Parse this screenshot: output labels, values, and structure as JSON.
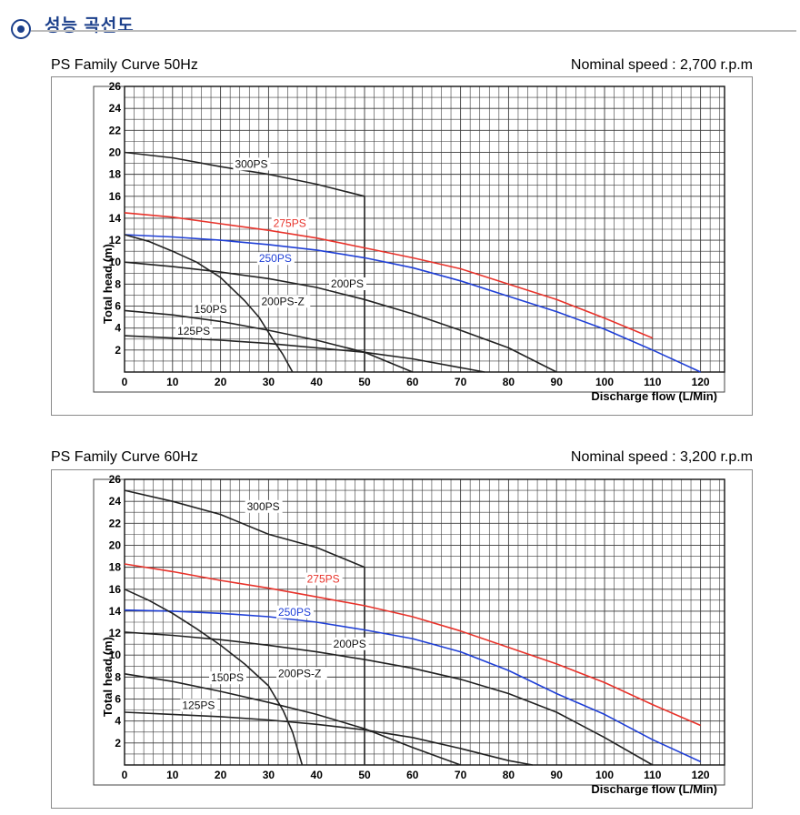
{
  "header": {
    "title": "성능 곡선도",
    "icon": "bullet-circle-icon",
    "accent": "#1b3f8b"
  },
  "colors": {
    "black": "#222222",
    "red": "#e8332b",
    "blue": "#1f3fd6"
  },
  "chart_data": [
    {
      "type": "line",
      "title": "PS Family Curve 50Hz",
      "subtitle": "Nominal speed : 2,700 r.p.m",
      "xlabel": "Discharge flow (L/Min)",
      "ylabel": "Total head (m)",
      "xlim": [
        0,
        125
      ],
      "ylim": [
        0,
        26
      ],
      "xticks": [
        0,
        10,
        20,
        30,
        40,
        50,
        60,
        70,
        80,
        90,
        100,
        110,
        120
      ],
      "yticks": [
        2,
        4,
        6,
        8,
        10,
        12,
        14,
        16,
        18,
        20,
        22,
        24,
        26
      ],
      "grid": true,
      "series": [
        {
          "name": "300PS",
          "color": "black",
          "points": [
            [
              0,
              20
            ],
            [
              10,
              19.5
            ],
            [
              20,
              18.7
            ],
            [
              30,
              18.0
            ],
            [
              40,
              17.1
            ],
            [
              50,
              16.0
            ],
            [
              50,
              0
            ]
          ],
          "label_at": [
            23,
            18.6
          ]
        },
        {
          "name": "275PS",
          "color": "red",
          "points": [
            [
              0,
              14.5
            ],
            [
              10,
              14.1
            ],
            [
              20,
              13.5
            ],
            [
              30,
              12.9
            ],
            [
              40,
              12.2
            ],
            [
              50,
              11.3
            ],
            [
              60,
              10.4
            ],
            [
              70,
              9.4
            ],
            [
              80,
              8.0
            ],
            [
              90,
              6.6
            ],
            [
              100,
              4.9
            ],
            [
              110,
              3.1
            ]
          ],
          "label_at": [
            31,
            13.2
          ]
        },
        {
          "name": "250PS",
          "color": "blue",
          "points": [
            [
              0,
              12.5
            ],
            [
              10,
              12.3
            ],
            [
              20,
              12.0
            ],
            [
              30,
              11.6
            ],
            [
              40,
              11.1
            ],
            [
              50,
              10.4
            ],
            [
              60,
              9.5
            ],
            [
              70,
              8.3
            ],
            [
              80,
              6.9
            ],
            [
              90,
              5.5
            ],
            [
              100,
              3.9
            ],
            [
              110,
              2.0
            ],
            [
              120,
              0
            ]
          ],
          "label_at": [
            28,
            10.0
          ]
        },
        {
          "name": "200PS",
          "color": "black",
          "points": [
            [
              0,
              10.0
            ],
            [
              10,
              9.6
            ],
            [
              20,
              9.1
            ],
            [
              30,
              8.5
            ],
            [
              40,
              7.7
            ],
            [
              50,
              6.6
            ],
            [
              60,
              5.3
            ],
            [
              70,
              3.8
            ],
            [
              80,
              2.2
            ],
            [
              90,
              0
            ]
          ],
          "label_at": [
            43,
            7.7
          ]
        },
        {
          "name": "200PS-Z",
          "color": "black",
          "points": [
            [
              0,
              12.5
            ],
            [
              5,
              11.9
            ],
            [
              10,
              11.0
            ],
            [
              15,
              10.0
            ],
            [
              20,
              8.6
            ],
            [
              25,
              6.5
            ],
            [
              28,
              5.0
            ],
            [
              31,
              2.9
            ],
            [
              33,
              1.6
            ],
            [
              35,
              0
            ]
          ],
          "label_at": [
            28.5,
            6.1
          ]
        },
        {
          "name": "150PS",
          "color": "black",
          "points": [
            [
              0,
              5.6
            ],
            [
              10,
              5.2
            ],
            [
              20,
              4.6
            ],
            [
              30,
              3.8
            ],
            [
              40,
              2.9
            ],
            [
              50,
              1.8
            ],
            [
              60,
              0
            ]
          ],
          "label_at": [
            14.5,
            5.4
          ]
        },
        {
          "name": "125PS",
          "color": "black",
          "points": [
            [
              0,
              3.3
            ],
            [
              10,
              3.1
            ],
            [
              20,
              2.9
            ],
            [
              30,
              2.6
            ],
            [
              40,
              2.2
            ],
            [
              50,
              1.8
            ],
            [
              60,
              1.2
            ],
            [
              70,
              0.4
            ],
            [
              75,
              0
            ]
          ],
          "label_at": [
            11,
            3.4
          ]
        }
      ]
    },
    {
      "type": "line",
      "title": "PS Family Curve 60Hz",
      "subtitle": "Nominal speed : 3,200 r.p.m",
      "xlabel": "Discharge flow (L/Min)",
      "ylabel": "Total head (m)",
      "xlim": [
        0,
        125
      ],
      "ylim": [
        0,
        26
      ],
      "xticks": [
        0,
        10,
        20,
        30,
        40,
        50,
        60,
        70,
        80,
        90,
        100,
        110,
        120
      ],
      "yticks": [
        2,
        4,
        6,
        8,
        10,
        12,
        14,
        16,
        18,
        20,
        22,
        24,
        26
      ],
      "grid": true,
      "series": [
        {
          "name": "300PS",
          "color": "black",
          "points": [
            [
              0,
              25.0
            ],
            [
              10,
              24.0
            ],
            [
              20,
              22.8
            ],
            [
              30,
              21.0
            ],
            [
              40,
              19.8
            ],
            [
              50,
              18.0
            ],
            [
              50,
              0
            ]
          ],
          "label_at": [
            25.5,
            23.2
          ]
        },
        {
          "name": "275PS",
          "color": "red",
          "points": [
            [
              0,
              18.3
            ],
            [
              10,
              17.6
            ],
            [
              20,
              16.8
            ],
            [
              30,
              16.1
            ],
            [
              40,
              15.3
            ],
            [
              50,
              14.5
            ],
            [
              60,
              13.5
            ],
            [
              70,
              12.2
            ],
            [
              80,
              10.7
            ],
            [
              90,
              9.2
            ],
            [
              100,
              7.5
            ],
            [
              110,
              5.5
            ],
            [
              120,
              3.6
            ]
          ],
          "label_at": [
            38,
            16.6
          ]
        },
        {
          "name": "250PS",
          "color": "blue",
          "points": [
            [
              0,
              14.1
            ],
            [
              10,
              14.0
            ],
            [
              20,
              13.8
            ],
            [
              30,
              13.5
            ],
            [
              40,
              13.0
            ],
            [
              50,
              12.3
            ],
            [
              60,
              11.5
            ],
            [
              70,
              10.3
            ],
            [
              80,
              8.6
            ],
            [
              90,
              6.5
            ],
            [
              100,
              4.6
            ],
            [
              110,
              2.3
            ],
            [
              120,
              0.3
            ]
          ],
          "label_at": [
            32,
            13.6
          ]
        },
        {
          "name": "200PS",
          "color": "black",
          "points": [
            [
              0,
              12.1
            ],
            [
              10,
              11.8
            ],
            [
              20,
              11.4
            ],
            [
              30,
              10.9
            ],
            [
              40,
              10.3
            ],
            [
              50,
              9.6
            ],
            [
              60,
              8.8
            ],
            [
              70,
              7.8
            ],
            [
              80,
              6.5
            ],
            [
              90,
              4.8
            ],
            [
              100,
              2.5
            ],
            [
              110,
              0
            ]
          ],
          "label_at": [
            43.5,
            10.7
          ]
        },
        {
          "name": "200PS-Z",
          "color": "black",
          "points": [
            [
              0,
              16.0
            ],
            [
              5,
              15.0
            ],
            [
              10,
              13.8
            ],
            [
              15,
              12.4
            ],
            [
              20,
              10.9
            ],
            [
              25,
              9.2
            ],
            [
              30,
              7.2
            ],
            [
              33,
              5.0
            ],
            [
              35,
              3.0
            ],
            [
              37,
              0
            ]
          ],
          "label_at": [
            32,
            8.0
          ]
        },
        {
          "name": "150PS",
          "color": "black",
          "points": [
            [
              0,
              8.3
            ],
            [
              10,
              7.6
            ],
            [
              20,
              6.7
            ],
            [
              30,
              5.7
            ],
            [
              40,
              4.6
            ],
            [
              50,
              3.3
            ],
            [
              60,
              1.6
            ],
            [
              70,
              0
            ]
          ],
          "label_at": [
            18,
            7.6
          ]
        },
        {
          "name": "125PS",
          "color": "black",
          "points": [
            [
              0,
              4.8
            ],
            [
              10,
              4.6
            ],
            [
              20,
              4.4
            ],
            [
              30,
              4.1
            ],
            [
              40,
              3.7
            ],
            [
              50,
              3.2
            ],
            [
              60,
              2.5
            ],
            [
              70,
              1.5
            ],
            [
              80,
              0.4
            ],
            [
              85,
              0
            ]
          ],
          "label_at": [
            12,
            5.1
          ]
        }
      ]
    }
  ]
}
